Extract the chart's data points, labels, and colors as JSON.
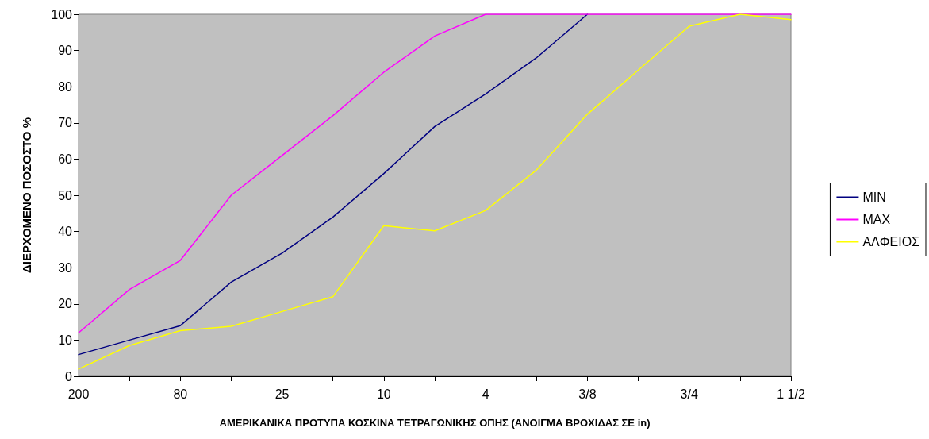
{
  "chart_data": {
    "type": "line",
    "xlabel": "ΑΜΕΡΙΚΑΝΙΚΑ ΠΡΟΤΥΠΑ ΚΟΣΚΙΝΑ ΤΕΤΡΑΓΩΝΙΚΗΣ ΟΠΗΣ (ΑΝΟΙΓΜΑ ΒΡΟΧΙΔΑΣ ΣΕ in)",
    "ylabel": "ΔΙΕΡΧΟΜΕΝΟ ΠΟΣΟΣΤΟ %",
    "categories": [
      "200",
      null,
      "80",
      null,
      "25",
      null,
      "10",
      null,
      "4",
      null,
      "3/8",
      null,
      "3/4",
      null,
      "1 1/2"
    ],
    "series": [
      {
        "name": "MIN",
        "color": "#000080",
        "values": [
          6,
          10,
          14,
          26,
          34,
          44,
          56,
          69,
          78,
          88,
          100,
          null,
          null,
          null,
          null
        ]
      },
      {
        "name": "MAX",
        "color": "#ff00ff",
        "values": [
          12,
          24,
          32,
          50,
          61,
          72,
          84,
          94,
          100,
          100,
          100,
          100,
          100,
          100,
          100
        ]
      },
      {
        "name": "ΑΛΦΕΙΟΣ",
        "color": "#ffff00",
        "values": [
          2,
          8.5,
          12.6,
          13.8,
          17.9,
          22,
          41.6,
          40.2,
          45.8,
          57,
          72.4,
          84.6,
          96.7,
          100,
          98.5
        ]
      }
    ],
    "ylim": [
      0,
      100
    ],
    "yticks": [
      0,
      10,
      20,
      30,
      40,
      50,
      60,
      70,
      80,
      90,
      100
    ],
    "grid": false,
    "legend": "right",
    "marker": "none",
    "line_style": "solid"
  }
}
